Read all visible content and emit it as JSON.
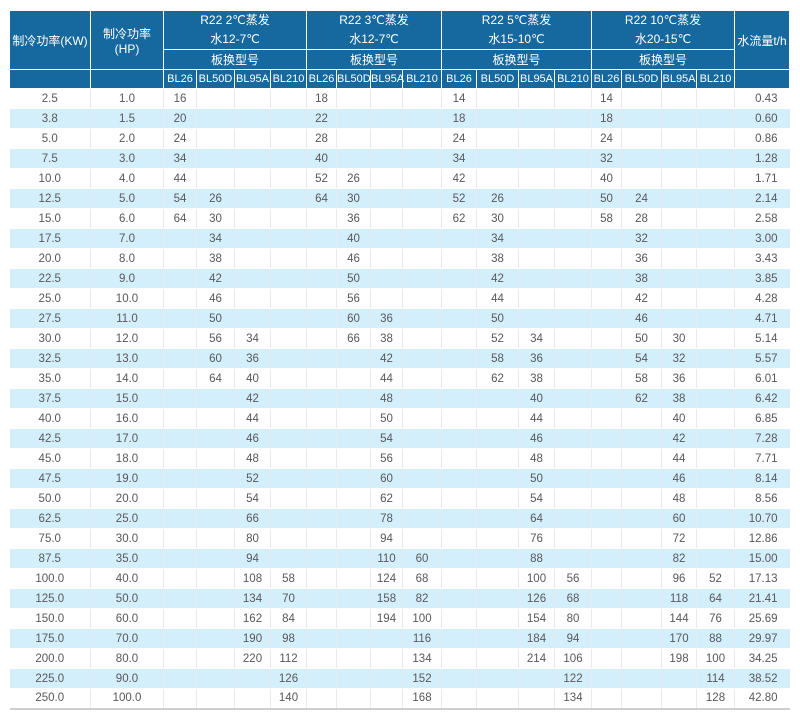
{
  "colors": {
    "header_bg": "#15699E",
    "header_text": "#FFFFFF",
    "stripe_bg": "#D3EFFC",
    "body_text": "#58585A"
  },
  "table": {
    "headers": {
      "kw": "制冷功率(KW)",
      "hp": "制冷功率(HP)",
      "flow": "水流量t/h",
      "model_label": "板换型号",
      "models": [
        "BL26",
        "BL50D",
        "BL95A",
        "BL210"
      ],
      "groups": [
        {
          "refrigerant": "R22 2℃蒸发",
          "water": "水12-7℃"
        },
        {
          "refrigerant": "R22 3℃蒸发",
          "water": "水12-7℃"
        },
        {
          "refrigerant": "R22 5℃蒸发",
          "water": "水15-10℃"
        },
        {
          "refrigerant": "R22 10℃蒸发",
          "water": "水20-15℃"
        }
      ]
    },
    "rows": [
      {
        "kw": "2.5",
        "hp": "1.0",
        "g1": [
          "16",
          "",
          "",
          ""
        ],
        "g2": [
          "18",
          "",
          "",
          ""
        ],
        "g3": [
          "14",
          "",
          "",
          ""
        ],
        "g4": [
          "14",
          "",
          "",
          ""
        ],
        "flow": "0.43"
      },
      {
        "kw": "3.8",
        "hp": "1.5",
        "g1": [
          "20",
          "",
          "",
          ""
        ],
        "g2": [
          "22",
          "",
          "",
          ""
        ],
        "g3": [
          "18",
          "",
          "",
          ""
        ],
        "g4": [
          "18",
          "",
          "",
          ""
        ],
        "flow": "0.60"
      },
      {
        "kw": "5.0",
        "hp": "2.0",
        "g1": [
          "24",
          "",
          "",
          ""
        ],
        "g2": [
          "28",
          "",
          "",
          ""
        ],
        "g3": [
          "24",
          "",
          "",
          ""
        ],
        "g4": [
          "24",
          "",
          "",
          ""
        ],
        "flow": "0.86"
      },
      {
        "kw": "7.5",
        "hp": "3.0",
        "g1": [
          "34",
          "",
          "",
          ""
        ],
        "g2": [
          "40",
          "",
          "",
          ""
        ],
        "g3": [
          "34",
          "",
          "",
          ""
        ],
        "g4": [
          "32",
          "",
          "",
          ""
        ],
        "flow": "1.28"
      },
      {
        "kw": "10.0",
        "hp": "4.0",
        "g1": [
          "44",
          "",
          "",
          ""
        ],
        "g2": [
          "52",
          "26",
          "",
          ""
        ],
        "g3": [
          "42",
          "",
          "",
          ""
        ],
        "g4": [
          "40",
          "",
          "",
          ""
        ],
        "flow": "1.71"
      },
      {
        "kw": "12.5",
        "hp": "5.0",
        "g1": [
          "54",
          "26",
          "",
          ""
        ],
        "g2": [
          "64",
          "30",
          "",
          ""
        ],
        "g3": [
          "52",
          "26",
          "",
          ""
        ],
        "g4": [
          "50",
          "24",
          "",
          ""
        ],
        "flow": "2.14"
      },
      {
        "kw": "15.0",
        "hp": "6.0",
        "g1": [
          "64",
          "30",
          "",
          ""
        ],
        "g2": [
          "",
          "36",
          "",
          ""
        ],
        "g3": [
          "62",
          "30",
          "",
          ""
        ],
        "g4": [
          "58",
          "28",
          "",
          ""
        ],
        "flow": "2.58"
      },
      {
        "kw": "17.5",
        "hp": "7.0",
        "g1": [
          "",
          "34",
          "",
          ""
        ],
        "g2": [
          "",
          "40",
          "",
          ""
        ],
        "g3": [
          "",
          "34",
          "",
          ""
        ],
        "g4": [
          "",
          "32",
          "",
          ""
        ],
        "flow": "3.00"
      },
      {
        "kw": "20.0",
        "hp": "8.0",
        "g1": [
          "",
          "38",
          "",
          ""
        ],
        "g2": [
          "",
          "46",
          "",
          ""
        ],
        "g3": [
          "",
          "38",
          "",
          ""
        ],
        "g4": [
          "",
          "36",
          "",
          ""
        ],
        "flow": "3.43"
      },
      {
        "kw": "22.5",
        "hp": "9.0",
        "g1": [
          "",
          "42",
          "",
          ""
        ],
        "g2": [
          "",
          "50",
          "",
          ""
        ],
        "g3": [
          "",
          "42",
          "",
          ""
        ],
        "g4": [
          "",
          "38",
          "",
          ""
        ],
        "flow": "3.85"
      },
      {
        "kw": "25.0",
        "hp": "10.0",
        "g1": [
          "",
          "46",
          "",
          ""
        ],
        "g2": [
          "",
          "56",
          "",
          ""
        ],
        "g3": [
          "",
          "44",
          "",
          ""
        ],
        "g4": [
          "",
          "42",
          "",
          ""
        ],
        "flow": "4.28"
      },
      {
        "kw": "27.5",
        "hp": "11.0",
        "g1": [
          "",
          "50",
          "",
          ""
        ],
        "g2": [
          "",
          "60",
          "36",
          ""
        ],
        "g3": [
          "",
          "50",
          "",
          ""
        ],
        "g4": [
          "",
          "46",
          "",
          ""
        ],
        "flow": "4.71"
      },
      {
        "kw": "30.0",
        "hp": "12.0",
        "g1": [
          "",
          "56",
          "34",
          ""
        ],
        "g2": [
          "",
          "66",
          "38",
          ""
        ],
        "g3": [
          "",
          "52",
          "34",
          ""
        ],
        "g4": [
          "",
          "50",
          "30",
          ""
        ],
        "flow": "5.14"
      },
      {
        "kw": "32.5",
        "hp": "13.0",
        "g1": [
          "",
          "60",
          "36",
          ""
        ],
        "g2": [
          "",
          "",
          "42",
          ""
        ],
        "g3": [
          "",
          "58",
          "36",
          ""
        ],
        "g4": [
          "",
          "54",
          "32",
          ""
        ],
        "flow": "5.57"
      },
      {
        "kw": "35.0",
        "hp": "14.0",
        "g1": [
          "",
          "64",
          "40",
          ""
        ],
        "g2": [
          "",
          "",
          "44",
          ""
        ],
        "g3": [
          "",
          "62",
          "38",
          ""
        ],
        "g4": [
          "",
          "58",
          "36",
          ""
        ],
        "flow": "6.01"
      },
      {
        "kw": "37.5",
        "hp": "15.0",
        "g1": [
          "",
          "",
          "42",
          ""
        ],
        "g2": [
          "",
          "",
          "48",
          ""
        ],
        "g3": [
          "",
          "",
          "40",
          ""
        ],
        "g4": [
          "",
          "62",
          "38",
          ""
        ],
        "flow": "6.42"
      },
      {
        "kw": "40.0",
        "hp": "16.0",
        "g1": [
          "",
          "",
          "44",
          ""
        ],
        "g2": [
          "",
          "",
          "50",
          ""
        ],
        "g3": [
          "",
          "",
          "44",
          ""
        ],
        "g4": [
          "",
          "",
          "40",
          ""
        ],
        "flow": "6.85"
      },
      {
        "kw": "42.5",
        "hp": "17.0",
        "g1": [
          "",
          "",
          "46",
          ""
        ],
        "g2": [
          "",
          "",
          "54",
          ""
        ],
        "g3": [
          "",
          "",
          "46",
          ""
        ],
        "g4": [
          "",
          "",
          "42",
          ""
        ],
        "flow": "7.28"
      },
      {
        "kw": "45.0",
        "hp": "18.0",
        "g1": [
          "",
          "",
          "48",
          ""
        ],
        "g2": [
          "",
          "",
          "56",
          ""
        ],
        "g3": [
          "",
          "",
          "48",
          ""
        ],
        "g4": [
          "",
          "",
          "44",
          ""
        ],
        "flow": "7.71"
      },
      {
        "kw": "47.5",
        "hp": "19.0",
        "g1": [
          "",
          "",
          "52",
          ""
        ],
        "g2": [
          "",
          "",
          "60",
          ""
        ],
        "g3": [
          "",
          "",
          "50",
          ""
        ],
        "g4": [
          "",
          "",
          "46",
          ""
        ],
        "flow": "8.14"
      },
      {
        "kw": "50.0",
        "hp": "20.0",
        "g1": [
          "",
          "",
          "54",
          ""
        ],
        "g2": [
          "",
          "",
          "62",
          ""
        ],
        "g3": [
          "",
          "",
          "54",
          ""
        ],
        "g4": [
          "",
          "",
          "48",
          ""
        ],
        "flow": "8.56"
      },
      {
        "kw": "62.5",
        "hp": "25.0",
        "g1": [
          "",
          "",
          "66",
          ""
        ],
        "g2": [
          "",
          "",
          "78",
          ""
        ],
        "g3": [
          "",
          "",
          "64",
          ""
        ],
        "g4": [
          "",
          "",
          "60",
          ""
        ],
        "flow": "10.70"
      },
      {
        "kw": "75.0",
        "hp": "30.0",
        "g1": [
          "",
          "",
          "80",
          ""
        ],
        "g2": [
          "",
          "",
          "94",
          ""
        ],
        "g3": [
          "",
          "",
          "76",
          ""
        ],
        "g4": [
          "",
          "",
          "72",
          ""
        ],
        "flow": "12.86"
      },
      {
        "kw": "87.5",
        "hp": "35.0",
        "g1": [
          "",
          "",
          "94",
          ""
        ],
        "g2": [
          "",
          "",
          "110",
          "60"
        ],
        "g3": [
          "",
          "",
          "88",
          ""
        ],
        "g4": [
          "",
          "",
          "82",
          ""
        ],
        "flow": "15.00"
      },
      {
        "kw": "100.0",
        "hp": "40.0",
        "g1": [
          "",
          "",
          "108",
          "58"
        ],
        "g2": [
          "",
          "",
          "124",
          "68"
        ],
        "g3": [
          "",
          "",
          "100",
          "56"
        ],
        "g4": [
          "",
          "",
          "96",
          "52"
        ],
        "flow": "17.13"
      },
      {
        "kw": "125.0",
        "hp": "50.0",
        "g1": [
          "",
          "",
          "134",
          "70"
        ],
        "g2": [
          "",
          "",
          "158",
          "82"
        ],
        "g3": [
          "",
          "",
          "126",
          "68"
        ],
        "g4": [
          "",
          "",
          "118",
          "64"
        ],
        "flow": "21.41"
      },
      {
        "kw": "150.0",
        "hp": "60.0",
        "g1": [
          "",
          "",
          "162",
          "84"
        ],
        "g2": [
          "",
          "",
          "194",
          "100"
        ],
        "g3": [
          "",
          "",
          "154",
          "80"
        ],
        "g4": [
          "",
          "",
          "144",
          "76"
        ],
        "flow": "25.69"
      },
      {
        "kw": "175.0",
        "hp": "70.0",
        "g1": [
          "",
          "",
          "190",
          "98"
        ],
        "g2": [
          "",
          "",
          "",
          "116"
        ],
        "g3": [
          "",
          "",
          "184",
          "94"
        ],
        "g4": [
          "",
          "",
          "170",
          "88"
        ],
        "flow": "29.97"
      },
      {
        "kw": "200.0",
        "hp": "80.0",
        "g1": [
          "",
          "",
          "220",
          "112"
        ],
        "g2": [
          "",
          "",
          "",
          "134"
        ],
        "g3": [
          "",
          "",
          "214",
          "106"
        ],
        "g4": [
          "",
          "",
          "198",
          "100"
        ],
        "flow": "34.25"
      },
      {
        "kw": "225.0",
        "hp": "90.0",
        "g1": [
          "",
          "",
          "",
          "126"
        ],
        "g2": [
          "",
          "",
          "",
          "152"
        ],
        "g3": [
          "",
          "",
          "",
          "122"
        ],
        "g4": [
          "",
          "",
          "",
          "114"
        ],
        "flow": "38.52"
      },
      {
        "kw": "250.0",
        "hp": "100.0",
        "g1": [
          "",
          "",
          "",
          "140"
        ],
        "g2": [
          "",
          "",
          "",
          "168"
        ],
        "g3": [
          "",
          "",
          "",
          "134"
        ],
        "g4": [
          "",
          "",
          "",
          "128"
        ],
        "flow": "42.80"
      }
    ]
  }
}
